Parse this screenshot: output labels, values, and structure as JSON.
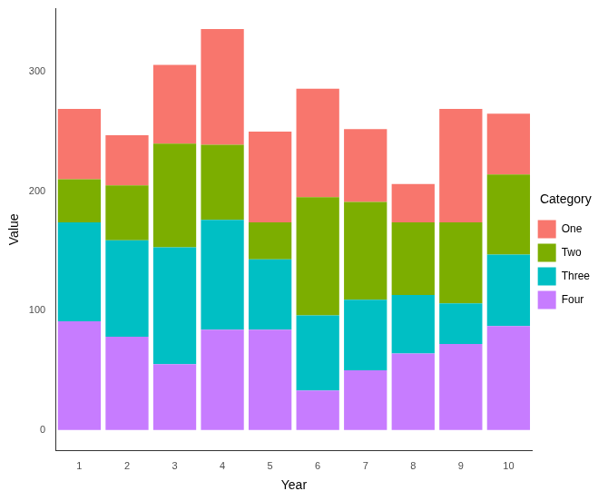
{
  "chart_data": {
    "type": "bar",
    "stacked": true,
    "x_label": "Year",
    "y_label": "Value",
    "legend_title": "Category",
    "legend": "right",
    "grid": false,
    "categories": [
      "1",
      "2",
      "3",
      "4",
      "5",
      "6",
      "7",
      "8",
      "9",
      "10"
    ],
    "series": [
      {
        "name": "One",
        "color": "#F8766D",
        "values": [
          59,
          42,
          66,
          97,
          76,
          91,
          61,
          32,
          95,
          51
        ]
      },
      {
        "name": "Two",
        "color": "#7CAE00",
        "values": [
          36,
          46,
          87,
          63,
          31,
          99,
          82,
          61,
          68,
          67
        ]
      },
      {
        "name": "Three",
        "color": "#00BFC4",
        "values": [
          83,
          81,
          98,
          92,
          59,
          63,
          59,
          49,
          34,
          60
        ]
      },
      {
        "name": "Four",
        "color": "#C77CFF",
        "values": [
          91,
          78,
          55,
          84,
          84,
          33,
          50,
          64,
          72,
          87
        ]
      }
    ],
    "ylim": [
      -17,
      353
    ],
    "yticks": [
      0,
      100,
      200,
      300
    ]
  }
}
